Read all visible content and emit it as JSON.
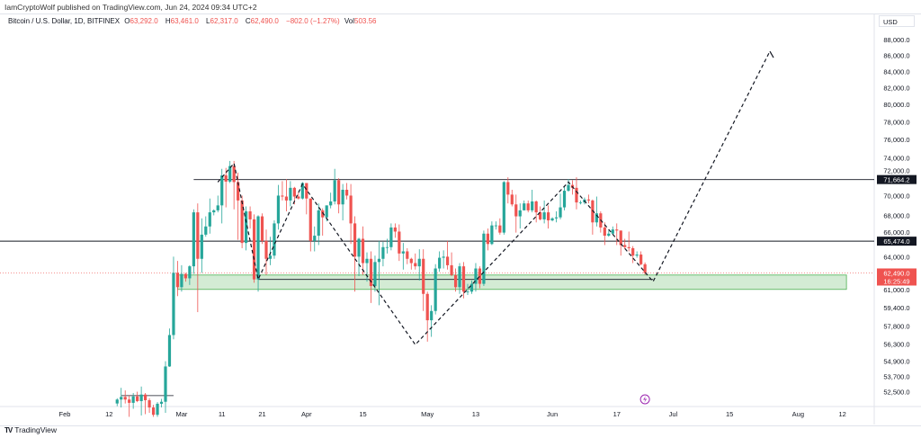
{
  "publisher": "IamCryptoWolf published on TradingView.com, Jun 24, 2024 09:34 UTC+2",
  "legend": {
    "symbol": "Bitcoin / U.S. Dollar, 1D, BITFINEX",
    "open_label": "O",
    "open": "63,292.0",
    "high_label": "H",
    "high": "63,461.0",
    "low_label": "L",
    "low": "62,317.0",
    "close_label": "C",
    "close": "62,490.0",
    "change": "−802.0 (−1.27%)",
    "vol_label": "Vol",
    "vol": "503.56"
  },
  "currency": "USD",
  "footer": {
    "brand": "TradingView"
  },
  "colors": {
    "up": "#26a69a",
    "down": "#ef5350",
    "zone": "#c8e6c9",
    "price_label": "#ef5350",
    "line": "#131722",
    "event_icon": "#9c27b0"
  },
  "icons": {
    "event": "lightning-icon",
    "logo": "tradingview-logo-icon"
  },
  "chart_data": {
    "type": "candlestick",
    "y_scale": "log",
    "ylim": [
      51000,
      90000
    ],
    "xlim": [
      "2024-01-30",
      "2024-08-18"
    ],
    "y_ticks": [
      "88,000.0",
      "86,000.0",
      "84,000.0",
      "82,000.0",
      "80,000.0",
      "78,000.0",
      "76,000.0",
      "74,000.0",
      "72,000.0",
      "70,000.0",
      "68,000.0",
      "66,000.0",
      "64,000.0",
      "61,000.0",
      "59,400.0",
      "57,800.0",
      "56,300.0",
      "54,900.0",
      "53,700.0",
      "52,500.0"
    ],
    "x_ticks": [
      {
        "date": "2024-02-01",
        "label": "Feb"
      },
      {
        "date": "2024-02-12",
        "label": "12"
      },
      {
        "date": "2024-03-01",
        "label": "Mar"
      },
      {
        "date": "2024-03-11",
        "label": "11"
      },
      {
        "date": "2024-03-21",
        "label": "21"
      },
      {
        "date": "2024-04-01",
        "label": "Apr"
      },
      {
        "date": "2024-04-15",
        "label": "15"
      },
      {
        "date": "2024-05-01",
        "label": "May"
      },
      {
        "date": "2024-05-13",
        "label": "13"
      },
      {
        "date": "2024-06-01",
        "label": "Jun"
      },
      {
        "date": "2024-06-17",
        "label": "17"
      },
      {
        "date": "2024-07-01",
        "label": "Jul"
      },
      {
        "date": "2024-07-15",
        "label": "15"
      },
      {
        "date": "2024-08-01",
        "label": "Aug"
      },
      {
        "date": "2024-08-12",
        "label": "12"
      }
    ],
    "start_date": "2024-02-14",
    "ohlc": [
      [
        51600,
        52000,
        51400,
        51900
      ],
      [
        51900,
        52800,
        51300,
        52100
      ],
      [
        52100,
        52600,
        51600,
        51900
      ],
      [
        51900,
        52200,
        50600,
        51650
      ],
      [
        51650,
        52400,
        51200,
        52140
      ],
      [
        52140,
        52500,
        51700,
        51780
      ],
      [
        51780,
        52900,
        50700,
        52280
      ],
      [
        52280,
        52400,
        50800,
        51850
      ],
      [
        51850,
        52000,
        50900,
        51300
      ],
      [
        51300,
        51500,
        50600,
        50750
      ],
      [
        50750,
        51700,
        50600,
        51580
      ],
      [
        51580,
        51950,
        51300,
        51730
      ],
      [
        51730,
        54900,
        50900,
        54480
      ],
      [
        54480,
        57600,
        54450,
        57050
      ],
      [
        57050,
        64000,
        56700,
        62500
      ],
      [
        62500,
        63600,
        60400,
        61200
      ],
      [
        61200,
        63200,
        60800,
        62400
      ],
      [
        62400,
        62500,
        61700,
        62000
      ],
      [
        62000,
        63200,
        61400,
        63100
      ],
      [
        63100,
        68600,
        62400,
        68300
      ],
      [
        68300,
        69200,
        59000,
        63800
      ],
      [
        63800,
        67700,
        62500,
        66100
      ],
      [
        66100,
        67900,
        65900,
        66900
      ],
      [
        66900,
        69700,
        66200,
        68300
      ],
      [
        68300,
        68600,
        68000,
        68500
      ],
      [
        68500,
        70000,
        68300,
        69000
      ],
      [
        69000,
        72800,
        67200,
        72100
      ],
      [
        72100,
        72900,
        68800,
        71450
      ],
      [
        71450,
        73650,
        71300,
        73100
      ],
      [
        73100,
        73650,
        68600,
        71400
      ],
      [
        71400,
        72400,
        65600,
        69500
      ],
      [
        69500,
        70000,
        64800,
        65300
      ],
      [
        65300,
        68900,
        64600,
        68400
      ],
      [
        68400,
        68900,
        66700,
        67600
      ],
      [
        67600,
        68100,
        61600,
        61900
      ],
      [
        61900,
        68000,
        60800,
        67900
      ],
      [
        67900,
        68200,
        65200,
        65500
      ],
      [
        65500,
        66600,
        62300,
        63800
      ],
      [
        63800,
        65900,
        63200,
        64100
      ],
      [
        64100,
        67500,
        63800,
        67200
      ],
      [
        67200,
        71100,
        66600,
        70000
      ],
      [
        70000,
        71500,
        69500,
        69900
      ],
      [
        69900,
        71700,
        68400,
        69500
      ],
      [
        69500,
        71500,
        68900,
        70800
      ],
      [
        70800,
        70900,
        69100,
        69900
      ],
      [
        69900,
        70300,
        69600,
        69700
      ],
      [
        69700,
        71400,
        69600,
        71300
      ],
      [
        71300,
        71300,
        68100,
        69700
      ],
      [
        69700,
        69700,
        64500,
        65500
      ],
      [
        65500,
        66900,
        64500,
        66000
      ],
      [
        66000,
        69200,
        65100,
        68500
      ],
      [
        68500,
        68700,
        66000,
        67800
      ],
      [
        67800,
        69000,
        67400,
        69000
      ],
      [
        69000,
        70300,
        68700,
        69400
      ],
      [
        69400,
        72800,
        69100,
        71600
      ],
      [
        71600,
        71800,
        68200,
        69100
      ],
      [
        69100,
        71200,
        67500,
        70600
      ],
      [
        70600,
        71300,
        69600,
        70000
      ],
      [
        70000,
        71200,
        65200,
        67200
      ],
      [
        67200,
        67900,
        60800,
        64000
      ],
      [
        64000,
        65800,
        62200,
        65700
      ],
      [
        65700,
        66900,
        62300,
        63400
      ],
      [
        63400,
        64400,
        61700,
        63800
      ],
      [
        63800,
        64500,
        59800,
        61300
      ],
      [
        61300,
        64100,
        60800,
        63500
      ],
      [
        63500,
        65500,
        59600,
        63800
      ],
      [
        63800,
        65400,
        63100,
        64900
      ],
      [
        64900,
        65700,
        64300,
        64900
      ],
      [
        64900,
        67200,
        64600,
        66800
      ],
      [
        66800,
        67200,
        65800,
        66400
      ],
      [
        66400,
        67100,
        63600,
        64300
      ],
      [
        64300,
        65300,
        62800,
        64500
      ],
      [
        64500,
        64800,
        63300,
        63800
      ],
      [
        63800,
        63900,
        62800,
        63400
      ],
      [
        63400,
        64300,
        62800,
        63100
      ],
      [
        63100,
        64700,
        61800,
        63800
      ],
      [
        63800,
        64700,
        59100,
        60600
      ],
      [
        60600,
        60800,
        56500,
        58300
      ],
      [
        58300,
        59600,
        56900,
        59100
      ],
      [
        59100,
        63300,
        58800,
        62900
      ],
      [
        62900,
        64500,
        62600,
        63900
      ],
      [
        63900,
        64600,
        62900,
        64000
      ],
      [
        64000,
        65500,
        62800,
        63200
      ],
      [
        63200,
        64400,
        62200,
        62300
      ],
      [
        62300,
        62900,
        60800,
        61200
      ],
      [
        61200,
        63400,
        60600,
        63100
      ],
      [
        63100,
        63500,
        60200,
        60800
      ],
      [
        60800,
        61500,
        60500,
        60800
      ],
      [
        60800,
        61800,
        60600,
        61500
      ],
      [
        61500,
        63400,
        60800,
        62900
      ],
      [
        62900,
        63100,
        61100,
        61500
      ],
      [
        61500,
        66500,
        61300,
        66200
      ],
      [
        66200,
        66700,
        64600,
        65200
      ],
      [
        65200,
        67400,
        65100,
        67000
      ],
      [
        67000,
        67400,
        66600,
        67000
      ],
      [
        67000,
        67700,
        66100,
        66300
      ],
      [
        66300,
        71500,
        66100,
        71400
      ],
      [
        71400,
        71900,
        69200,
        70100
      ],
      [
        70100,
        70600,
        68900,
        69100
      ],
      [
        69100,
        70100,
        66300,
        67900
      ],
      [
        67900,
        69200,
        66700,
        68500
      ],
      [
        68500,
        69500,
        68500,
        69200
      ],
      [
        69200,
        69500,
        68300,
        68500
      ],
      [
        68500,
        70600,
        68300,
        69400
      ],
      [
        69400,
        69500,
        67300,
        68300
      ],
      [
        68300,
        68900,
        67500,
        67600
      ],
      [
        67600,
        69500,
        67200,
        68300
      ],
      [
        68300,
        69000,
        66700,
        67500
      ],
      [
        67500,
        67800,
        67400,
        67700
      ],
      [
        67700,
        68400,
        67300,
        67800
      ],
      [
        67800,
        70200,
        67600,
        68800
      ],
      [
        68800,
        71000,
        68500,
        70500
      ],
      [
        70500,
        71700,
        70400,
        71100
      ],
      [
        71100,
        71600,
        70100,
        70800
      ],
      [
        70800,
        71900,
        68600,
        69300
      ],
      [
        69300,
        69500,
        69100,
        69300
      ],
      [
        69300,
        69800,
        69100,
        69600
      ],
      [
        69600,
        70100,
        69200,
        69500
      ],
      [
        69500,
        69600,
        66100,
        67300
      ],
      [
        67300,
        69900,
        66900,
        68200
      ],
      [
        68200,
        68400,
        66300,
        66800
      ],
      [
        66800,
        67300,
        65100,
        66000
      ],
      [
        66000,
        66500,
        65900,
        66200
      ],
      [
        66200,
        66900,
        66100,
        66600
      ],
      [
        66600,
        67200,
        65100,
        66500
      ],
      [
        66500,
        66500,
        64100,
        65100
      ],
      [
        65100,
        65700,
        64700,
        64900
      ],
      [
        64900,
        66400,
        64500,
        64800
      ],
      [
        64800,
        65000,
        63400,
        64100
      ],
      [
        64100,
        64500,
        63900,
        64200
      ],
      [
        64200,
        64500,
        63200,
        63292
      ],
      [
        63292,
        63461,
        62317,
        62490
      ]
    ],
    "horizontal_lines": [
      {
        "price": 71664.2,
        "label": "71,664.2",
        "from": "2024-03-04"
      },
      {
        "price": 65474.0,
        "label": "65,474.0",
        "from": "2024-01-15"
      }
    ],
    "support_zone": {
      "from": "2024-02-29",
      "to": "2024-08-13",
      "low": 61000,
      "high": 62300
    },
    "zone_line": {
      "price": 61900,
      "from": "2024-03-20",
      "to": "2024-06-26"
    },
    "range_line": {
      "price": 52200,
      "from": "2024-02-15",
      "to": "2024-02-28"
    },
    "projection_path": [
      [
        "2024-03-10",
        71400
      ],
      [
        "2024-03-14",
        73400
      ],
      [
        "2024-03-20",
        61900
      ],
      [
        "2024-03-31",
        71200
      ],
      [
        "2024-04-28",
        56250
      ],
      [
        "2024-06-05",
        71400
      ],
      [
        "2024-06-26",
        61700
      ],
      [
        "2024-07-25",
        86500
      ]
    ],
    "last_price": {
      "price": 62490,
      "label": "62,490.0",
      "countdown": "16:25:49"
    },
    "event_date": "2024-06-24"
  }
}
